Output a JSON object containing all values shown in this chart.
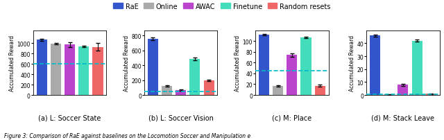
{
  "subplots": [
    {
      "title": "(a) L: Soccer State",
      "ylabel": "Accumulated Reward",
      "ylim": [
        0,
        1250
      ],
      "yticks": [
        0,
        200,
        400,
        600,
        800,
        1000
      ],
      "bars": [
        1065,
        990,
        975,
        940,
        930
      ],
      "errors": [
        18,
        15,
        45,
        12,
        75
      ],
      "dashed_line": 600,
      "dashed_color": "#00BBCC"
    },
    {
      "title": "(b) L: Soccer Vision",
      "ylabel": "Accumulated Reward",
      "ylim": [
        0,
        870
      ],
      "yticks": [
        0,
        200,
        400,
        600,
        800
      ],
      "bars": [
        755,
        120,
        65,
        485,
        195
      ],
      "errors": [
        15,
        8,
        12,
        18,
        12
      ],
      "dashed_line": 45,
      "dashed_color": "#00BBCC"
    },
    {
      "title": "(c) M: Place",
      "ylabel": "Accumulated Reward",
      "ylim": [
        0,
        120
      ],
      "yticks": [
        0,
        20,
        40,
        60,
        80,
        100
      ],
      "bars": [
        112,
        17,
        74,
        107,
        17
      ],
      "errors": [
        1.5,
        1.5,
        3,
        1.5,
        2
      ],
      "dashed_line": 45,
      "dashed_color": "#00BBCC"
    },
    {
      "title": "(d) M: Stack Leave",
      "ylabel": "Accumulated Reward",
      "ylim": [
        0,
        50
      ],
      "yticks": [
        0,
        10,
        20,
        30,
        40
      ],
      "bars": [
        46,
        0.4,
        8,
        42,
        1
      ],
      "errors": [
        0.8,
        0.15,
        0.8,
        0.8,
        0.25
      ],
      "dashed_line": 0.5,
      "dashed_color": "#00BBCC"
    }
  ],
  "bar_colors": [
    "#3355CC",
    "#AAAAAA",
    "#BB44CC",
    "#44DDBB",
    "#EE6666"
  ],
  "legend_labels": [
    "RaE",
    "Online",
    "AWAC",
    "Finetune",
    "Random resets"
  ],
  "caption": "Figure 3: Comparison of RaE against baselines on the Locomotion Soccer and Manipulation e",
  "figsize": [
    6.4,
    2.03
  ],
  "dpi": 100
}
